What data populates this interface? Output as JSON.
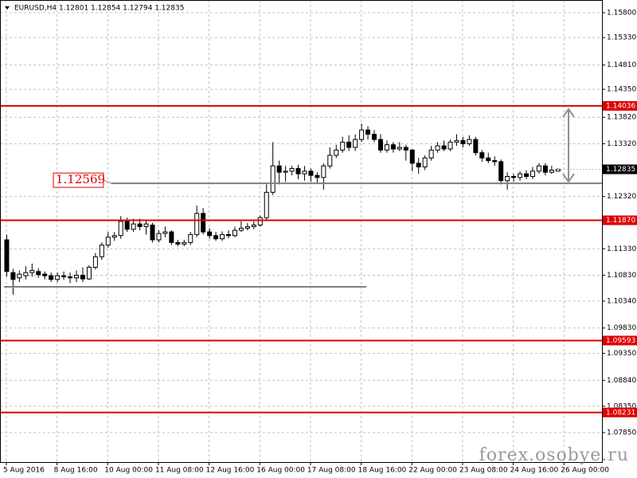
{
  "chart_data": {
    "type": "candlestick",
    "title": "EURUSD,H4 1.12801 1.12854 1.12794 1.12835",
    "watermark": "forex.osobye.ru",
    "up_color": "#ffffff",
    "down_color": "#000000",
    "level_color": "#e00000",
    "line_color": "#808080",
    "grid": true,
    "open": [
      1.115,
      1.1088,
      1.1078,
      1.1082,
      1.1088,
      1.109,
      1.1085,
      1.1082,
      1.1075,
      1.1082,
      1.108,
      1.1078,
      1.1083,
      1.1076,
      1.1098,
      1.1118,
      1.114,
      1.1155,
      1.1158,
      1.1185,
      1.117,
      1.118,
      1.1175,
      1.1178,
      1.115,
      1.1162,
      1.1165,
      1.1145,
      1.1142,
      1.1145,
      1.116,
      1.12,
      1.1165,
      1.1158,
      1.1152,
      1.116,
      1.1158,
      1.1168,
      1.1172,
      1.1175,
      1.1178,
      1.1192,
      1.124,
      1.129,
      1.1278,
      1.128,
      1.1285,
      1.1275,
      1.128,
      1.1272,
      1.1268,
      1.129,
      1.131,
      1.132,
      1.1335,
      1.1325,
      1.134,
      1.1358,
      1.135,
      1.134,
      1.132,
      1.133,
      1.1322,
      1.1325,
      1.132,
      1.1295,
      1.1288,
      1.1305,
      1.132,
      1.1328,
      1.1322,
      1.1335,
      1.1338,
      1.1332,
      1.134,
      1.1315,
      1.1305,
      1.13,
      1.1298,
      1.1262,
      1.127,
      1.1268,
      1.1275,
      1.127,
      1.128,
      1.129,
      1.1278,
      1.12801
    ],
    "high": [
      1.116,
      1.1095,
      1.1092,
      1.11,
      1.1105,
      1.1096,
      1.109,
      1.1088,
      1.1088,
      1.109,
      1.1088,
      1.1092,
      1.1098,
      1.1102,
      1.1125,
      1.1145,
      1.1165,
      1.1165,
      1.1195,
      1.1192,
      1.119,
      1.119,
      1.1188,
      1.1182,
      1.1168,
      1.1175,
      1.1168,
      1.115,
      1.115,
      1.1165,
      1.1215,
      1.121,
      1.1172,
      1.1165,
      1.1166,
      1.1168,
      1.1175,
      1.1185,
      1.1182,
      1.1185,
      1.1196,
      1.1255,
      1.1335,
      1.13,
      1.129,
      1.129,
      1.1292,
      1.129,
      1.1285,
      1.1278,
      1.1295,
      1.1325,
      1.133,
      1.1345,
      1.1348,
      1.135,
      1.137,
      1.1365,
      1.1358,
      1.135,
      1.1338,
      1.1335,
      1.1335,
      1.133,
      1.1322,
      1.1305,
      1.131,
      1.1328,
      1.1335,
      1.1338,
      1.134,
      1.135,
      1.1345,
      1.1348,
      1.1345,
      1.132,
      1.1315,
      1.1308,
      1.1302,
      1.1278,
      1.1275,
      1.128,
      1.1282,
      1.1288,
      1.1295,
      1.1295,
      1.129,
      1.12854
    ],
    "low": [
      1.108,
      1.1046,
      1.107,
      1.1075,
      1.108,
      1.1078,
      1.1075,
      1.107,
      1.107,
      1.1074,
      1.1068,
      1.107,
      1.107,
      1.1074,
      1.1094,
      1.1112,
      1.1135,
      1.1148,
      1.1152,
      1.1165,
      1.1165,
      1.1168,
      1.116,
      1.1145,
      1.1145,
      1.1155,
      1.114,
      1.1138,
      1.1138,
      1.114,
      1.1155,
      1.116,
      1.1152,
      1.1148,
      1.1148,
      1.1153,
      1.1155,
      1.1165,
      1.1168,
      1.117,
      1.1175,
      1.1188,
      1.1235,
      1.1255,
      1.126,
      1.1272,
      1.1265,
      1.1262,
      1.126,
      1.1258,
      1.1245,
      1.1285,
      1.1305,
      1.1315,
      1.1318,
      1.1318,
      1.1335,
      1.134,
      1.1335,
      1.1315,
      1.1315,
      1.1315,
      1.1318,
      1.13,
      1.128,
      1.1275,
      1.1282,
      1.13,
      1.1315,
      1.1318,
      1.1318,
      1.1328,
      1.1325,
      1.1328,
      1.131,
      1.1298,
      1.1295,
      1.129,
      1.1255,
      1.1245,
      1.126,
      1.1262,
      1.1265,
      1.1265,
      1.1275,
      1.1272,
      1.1275,
      1.12794
    ],
    "close": [
      1.109,
      1.1075,
      1.1085,
      1.1088,
      1.1092,
      1.1084,
      1.1082,
      1.1075,
      1.1082,
      1.108,
      1.1078,
      1.1083,
      1.1076,
      1.1098,
      1.1118,
      1.114,
      1.1155,
      1.1158,
      1.1185,
      1.117,
      1.118,
      1.1175,
      1.118,
      1.115,
      1.1162,
      1.1165,
      1.1145,
      1.1142,
      1.1145,
      1.116,
      1.12,
      1.1165,
      1.1158,
      1.1152,
      1.116,
      1.1158,
      1.1168,
      1.1172,
      1.1175,
      1.1178,
      1.1192,
      1.124,
      1.129,
      1.1278,
      1.128,
      1.1285,
      1.1275,
      1.128,
      1.1272,
      1.1268,
      1.129,
      1.131,
      1.132,
      1.1335,
      1.1325,
      1.134,
      1.1358,
      1.135,
      1.134,
      1.132,
      1.133,
      1.1322,
      1.1325,
      1.132,
      1.1295,
      1.1288,
      1.1305,
      1.132,
      1.1328,
      1.1322,
      1.1335,
      1.1338,
      1.1332,
      1.134,
      1.1315,
      1.1305,
      1.13,
      1.1298,
      1.1262,
      1.127,
      1.1268,
      1.1275,
      1.127,
      1.128,
      1.129,
      1.1278,
      1.1282,
      1.12835
    ],
    "xlim": [
      -1,
      94
    ],
    "xticks": [
      {
        "value": 0,
        "label": "5 Aug 2016"
      },
      {
        "value": 8,
        "label": "8 Aug 16:00"
      },
      {
        "value": 16,
        "label": "10 Aug 00:00"
      },
      {
        "value": 24,
        "label": "11 Aug 08:00"
      },
      {
        "value": 32,
        "label": "12 Aug 16:00"
      },
      {
        "value": 40,
        "label": "16 Aug 00:00"
      },
      {
        "value": 48,
        "label": "17 Aug 08:00"
      },
      {
        "value": 56,
        "label": "18 Aug 16:00"
      },
      {
        "value": 64,
        "label": "22 Aug 00:00"
      },
      {
        "value": 72,
        "label": "23 Aug 08:00"
      },
      {
        "value": 80,
        "label": "24 Aug 16:00"
      },
      {
        "value": 88,
        "label": "26 Aug 00:00"
      }
    ],
    "ylim": [
      1.07292,
      1.16041
    ],
    "yticks": [
      {
        "value": 1.158,
        "label": "1.15800"
      },
      {
        "value": 1.1533,
        "label": "1.15330"
      },
      {
        "value": 1.1481,
        "label": "1.14810"
      },
      {
        "value": 1.1435,
        "label": "1.14350"
      },
      {
        "value": 1.1382,
        "label": "1.13820"
      },
      {
        "value": 1.1332,
        "label": "1.13320"
      },
      {
        "value": 1.1232,
        "label": "1.12320"
      },
      {
        "value": 1.1133,
        "label": "1.11330"
      },
      {
        "value": 1.1083,
        "label": "1.10830"
      },
      {
        "value": 1.1034,
        "label": "1.10340"
      },
      {
        "value": 1.0983,
        "label": "1.09830"
      },
      {
        "value": 1.0935,
        "label": "1.09350"
      },
      {
        "value": 1.0884,
        "label": "1.08840"
      },
      {
        "value": 1.0835,
        "label": "1.08350"
      },
      {
        "value": 1.0785,
        "label": "1.07850"
      }
    ],
    "levels": [
      1.14036,
      {
        "value": 1.1187,
        "label": "1.11870"
      },
      1.09593,
      1.08231
    ],
    "marked_level": 1.12569,
    "old_level": 1.10611,
    "current_price": 1.12835
  }
}
